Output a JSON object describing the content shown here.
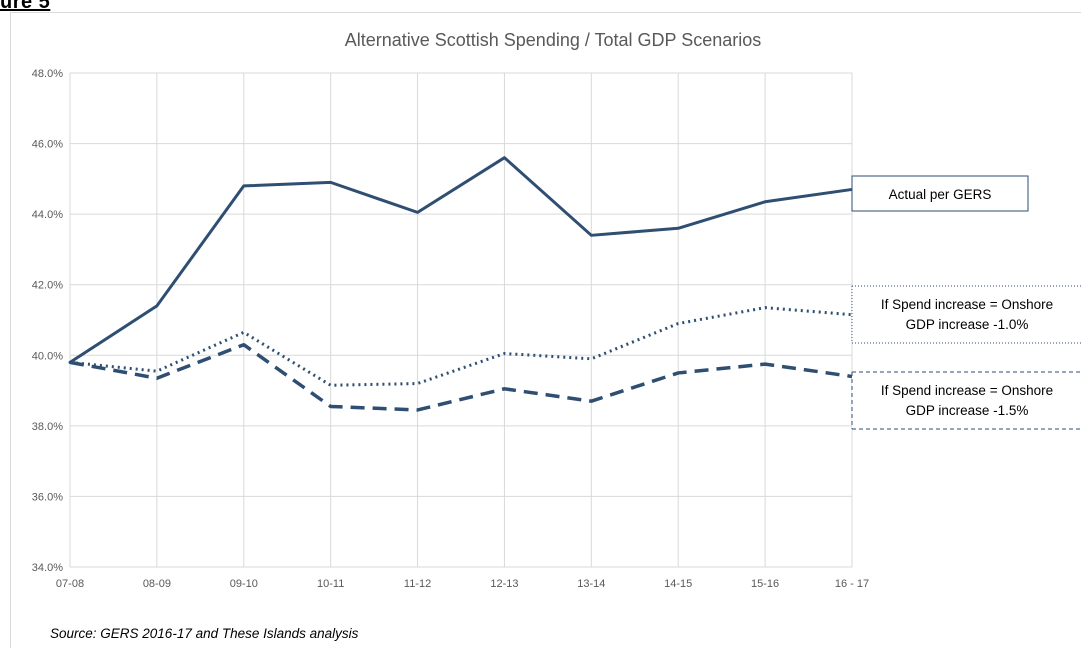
{
  "page_heading": "ure 5",
  "source_note": "Source: GERS 2016-17  and These Islands analysis",
  "colors": {
    "series": "#2e4e72",
    "grid": "#d9d9d9",
    "axis_text": "#595959"
  },
  "chart_data": {
    "type": "line",
    "title": "Alternative Scottish Spending / Total GDP Scenarios",
    "xlabel": "",
    "ylabel": "",
    "categories": [
      "07-08",
      "08-09",
      "09-10",
      "10-11",
      "11-12",
      "12-13",
      "13-14",
      "14-15",
      "15-16",
      "16 - 17"
    ],
    "ylim": [
      34.0,
      48.0
    ],
    "yticks": [
      "34.0%",
      "36.0%",
      "38.0%",
      "40.0%",
      "42.0%",
      "44.0%",
      "46.0%",
      "48.0%"
    ],
    "ytick_values": [
      34,
      36,
      38,
      40,
      42,
      44,
      46,
      48
    ],
    "grid": true,
    "series": [
      {
        "name": "Actual per GERS",
        "style": "solid",
        "values": [
          39.8,
          41.4,
          44.8,
          44.9,
          44.05,
          45.6,
          43.4,
          43.6,
          44.35,
          44.7
        ]
      },
      {
        "name": "If Spend increase = Onshore GDP increase -1.0%",
        "style": "dotted",
        "label_lines": [
          "If Spend increase = Onshore",
          "GDP increase -1.0%"
        ],
        "values": [
          39.8,
          39.55,
          40.65,
          39.15,
          39.2,
          40.05,
          39.9,
          40.9,
          41.35,
          41.15
        ]
      },
      {
        "name": "If Spend increase = Onshore GDP increase -1.5%",
        "style": "dashed",
        "label_lines": [
          "If Spend increase = Onshore",
          "GDP increase -1.5%"
        ],
        "values": [
          39.8,
          39.35,
          40.3,
          38.55,
          38.45,
          39.05,
          38.7,
          39.5,
          39.75,
          39.4
        ]
      }
    ]
  }
}
